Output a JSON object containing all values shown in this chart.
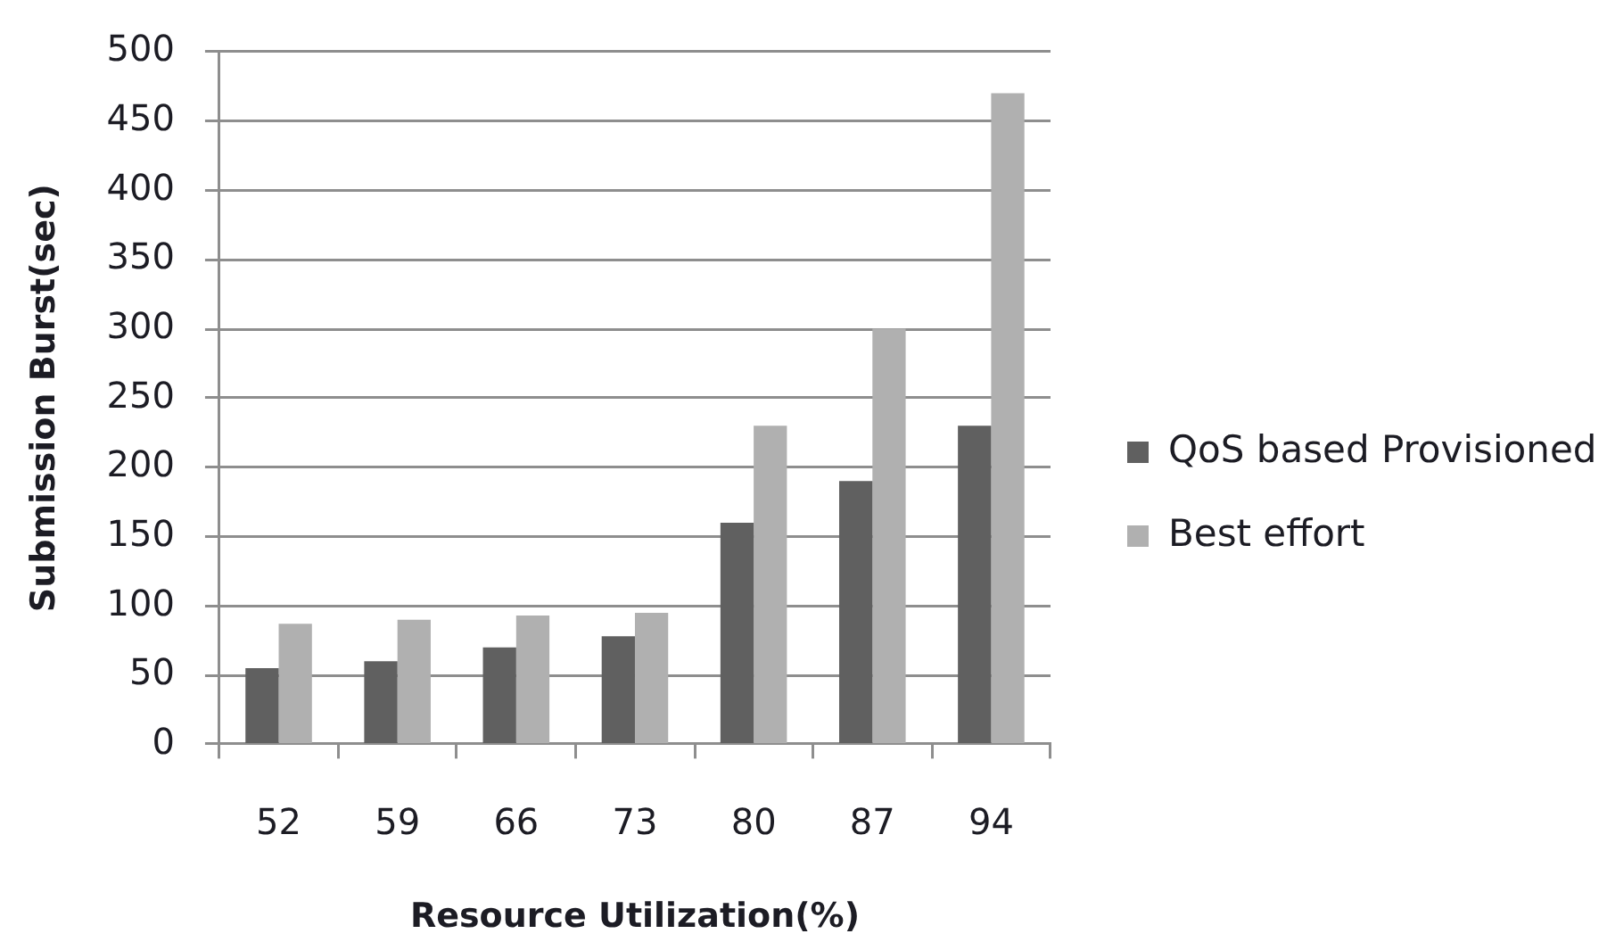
{
  "chart_data": {
    "type": "bar",
    "xlabel": "Resource Utilization(%)",
    "ylabel": "Submission Burst(sec)",
    "categories": [
      "52",
      "59",
      "66",
      "73",
      "80",
      "87",
      "94"
    ],
    "series": [
      {
        "name": "QoS based Provisioned",
        "color": "#606060",
        "values": [
          55,
          60,
          70,
          78,
          160,
          190,
          230
        ]
      },
      {
        "name": "Best effort",
        "color": "#b0b0b0",
        "values": [
          87,
          90,
          93,
          95,
          230,
          300,
          470
        ]
      }
    ],
    "ylim": [
      0,
      500
    ],
    "yticks": [
      0,
      50,
      100,
      150,
      200,
      250,
      300,
      350,
      400,
      450,
      500
    ],
    "grid": "y",
    "legend": "right"
  }
}
